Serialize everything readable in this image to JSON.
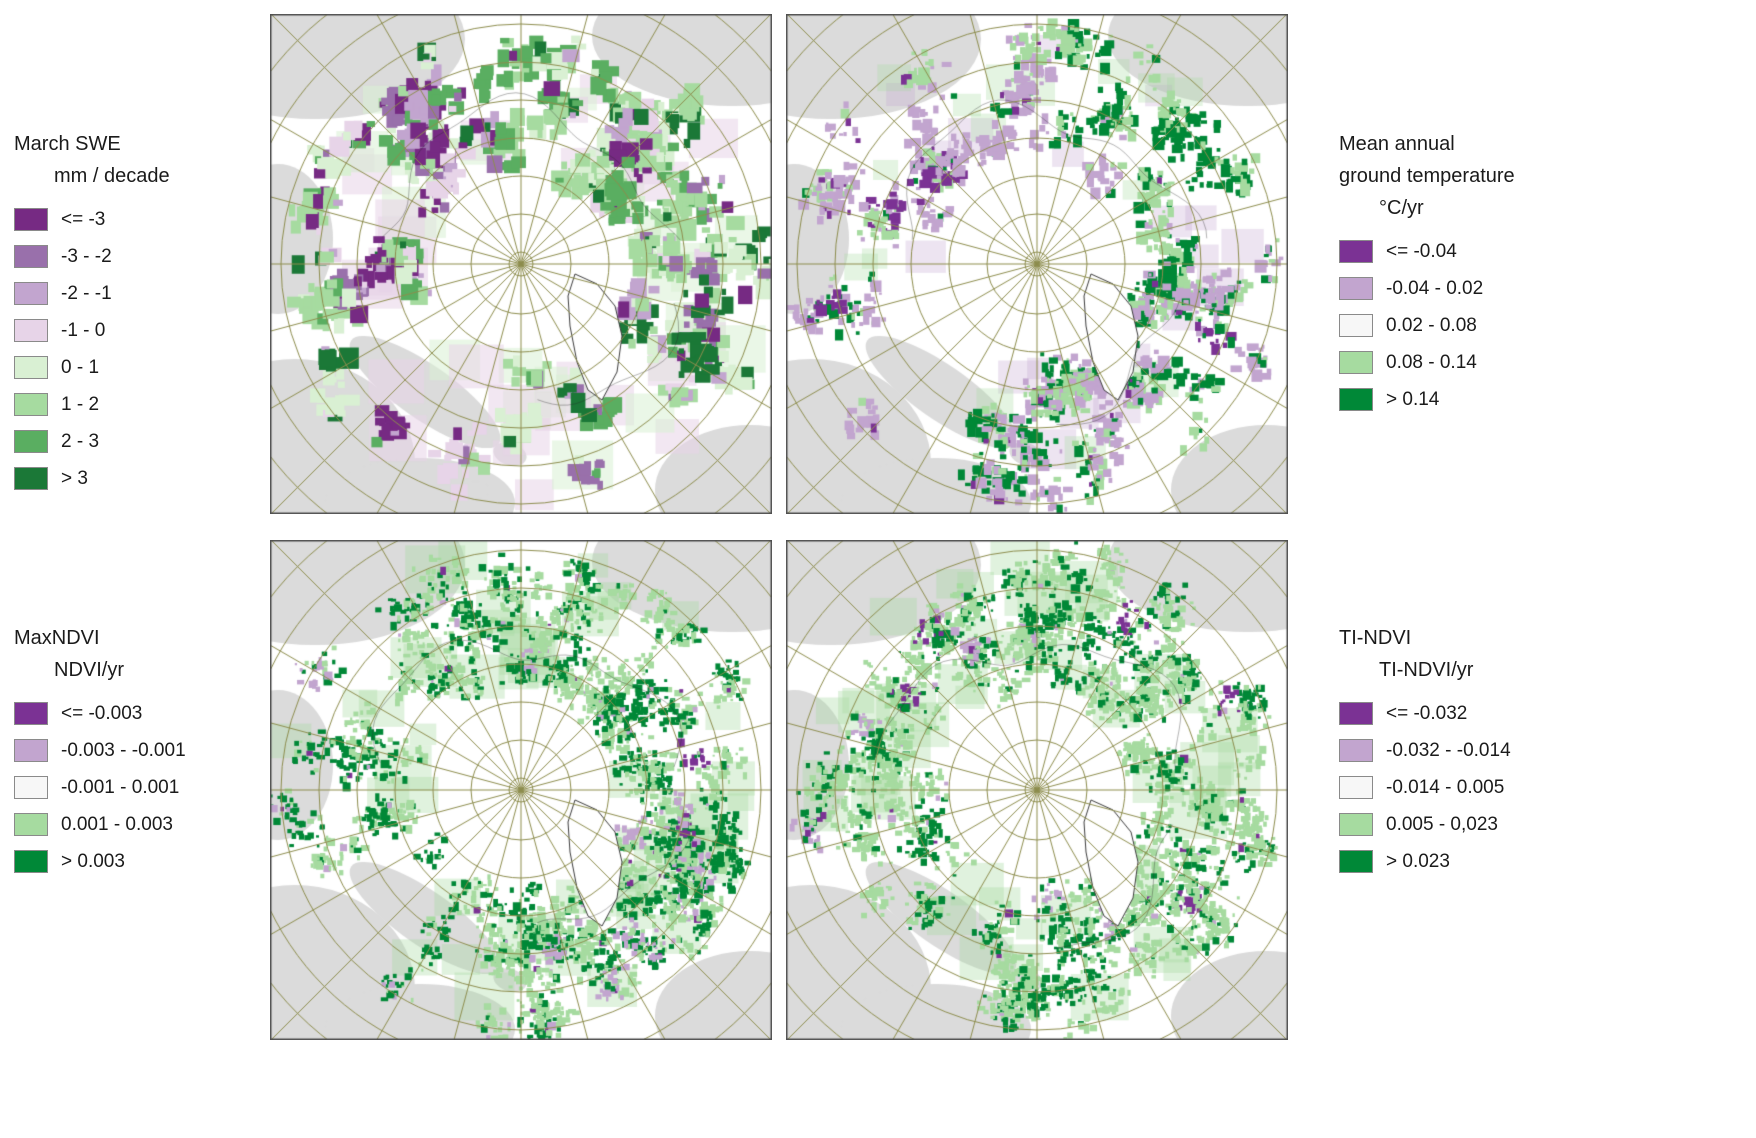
{
  "figure": {
    "background": "#ffffff"
  },
  "map_style": {
    "graticule_color": "#8d8d4d",
    "land_color": "#dbdbdb",
    "ocean_color": "#ffffff",
    "coast_color": "#3c3c3c",
    "border_color": "#4d4d4d",
    "greenland_fill": "#ffffff"
  },
  "panels": [
    {
      "id": "march-swe",
      "title_lines": [
        "March SWE"
      ],
      "unit": "mm / decade",
      "classes": [
        {
          "label": "<= -3",
          "color": "#762a83"
        },
        {
          "label": "-3 - -2",
          "color": "#9970ab"
        },
        {
          "label": "-2 - -1",
          "color": "#c2a5cf"
        },
        {
          "label": "-1 - 0",
          "color": "#e7d4e8"
        },
        {
          "label": "0 - 1",
          "color": "#d9f0d3"
        },
        {
          "label": "1 - 2",
          "color": "#a6dba0"
        },
        {
          "label": "2 - 3",
          "color": "#5aae61"
        },
        {
          "label": "> 3",
          "color": "#1b7837"
        }
      ]
    },
    {
      "id": "mean-annual-ground-temperature",
      "title_lines": [
        "Mean annual",
        "ground temperature"
      ],
      "unit": "°C/yr",
      "classes": [
        {
          "label": "<= -0.04",
          "color": "#7b3294"
        },
        {
          "label": "-0.04 - 0.02",
          "color": "#c2a5cf"
        },
        {
          "label": "0.02 - 0.08",
          "color": "#f7f7f7"
        },
        {
          "label": "0.08 - 0.14",
          "color": "#a6dba0"
        },
        {
          "label": "> 0.14",
          "color": "#008837"
        }
      ]
    },
    {
      "id": "max-ndvi",
      "title_lines": [
        "MaxNDVI"
      ],
      "unit": "NDVI/yr",
      "classes": [
        {
          "label": "<= -0.003",
          "color": "#7b3294"
        },
        {
          "label": "-0.003 - -0.001",
          "color": "#c2a5cf"
        },
        {
          "label": "-0.001 - 0.001",
          "color": "#f7f7f7"
        },
        {
          "label": "0.001 - 0.003",
          "color": "#a6dba0"
        },
        {
          "label": "> 0.003",
          "color": "#008837"
        }
      ]
    },
    {
      "id": "ti-ndvi",
      "title_lines": [
        "TI-NDVI"
      ],
      "unit": "TI-NDVI/yr",
      "classes": [
        {
          "label": "<= -0.032",
          "color": "#7b3294"
        },
        {
          "label": "-0.032 - -0.014",
          "color": "#c2a5cf"
        },
        {
          "label": "-0.014 - 0.005",
          "color": "#f7f7f7"
        },
        {
          "label": "0.005 - 0,023",
          "color": "#a6dba0"
        },
        {
          "label": "> 0.023",
          "color": "#008837"
        }
      ]
    }
  ]
}
